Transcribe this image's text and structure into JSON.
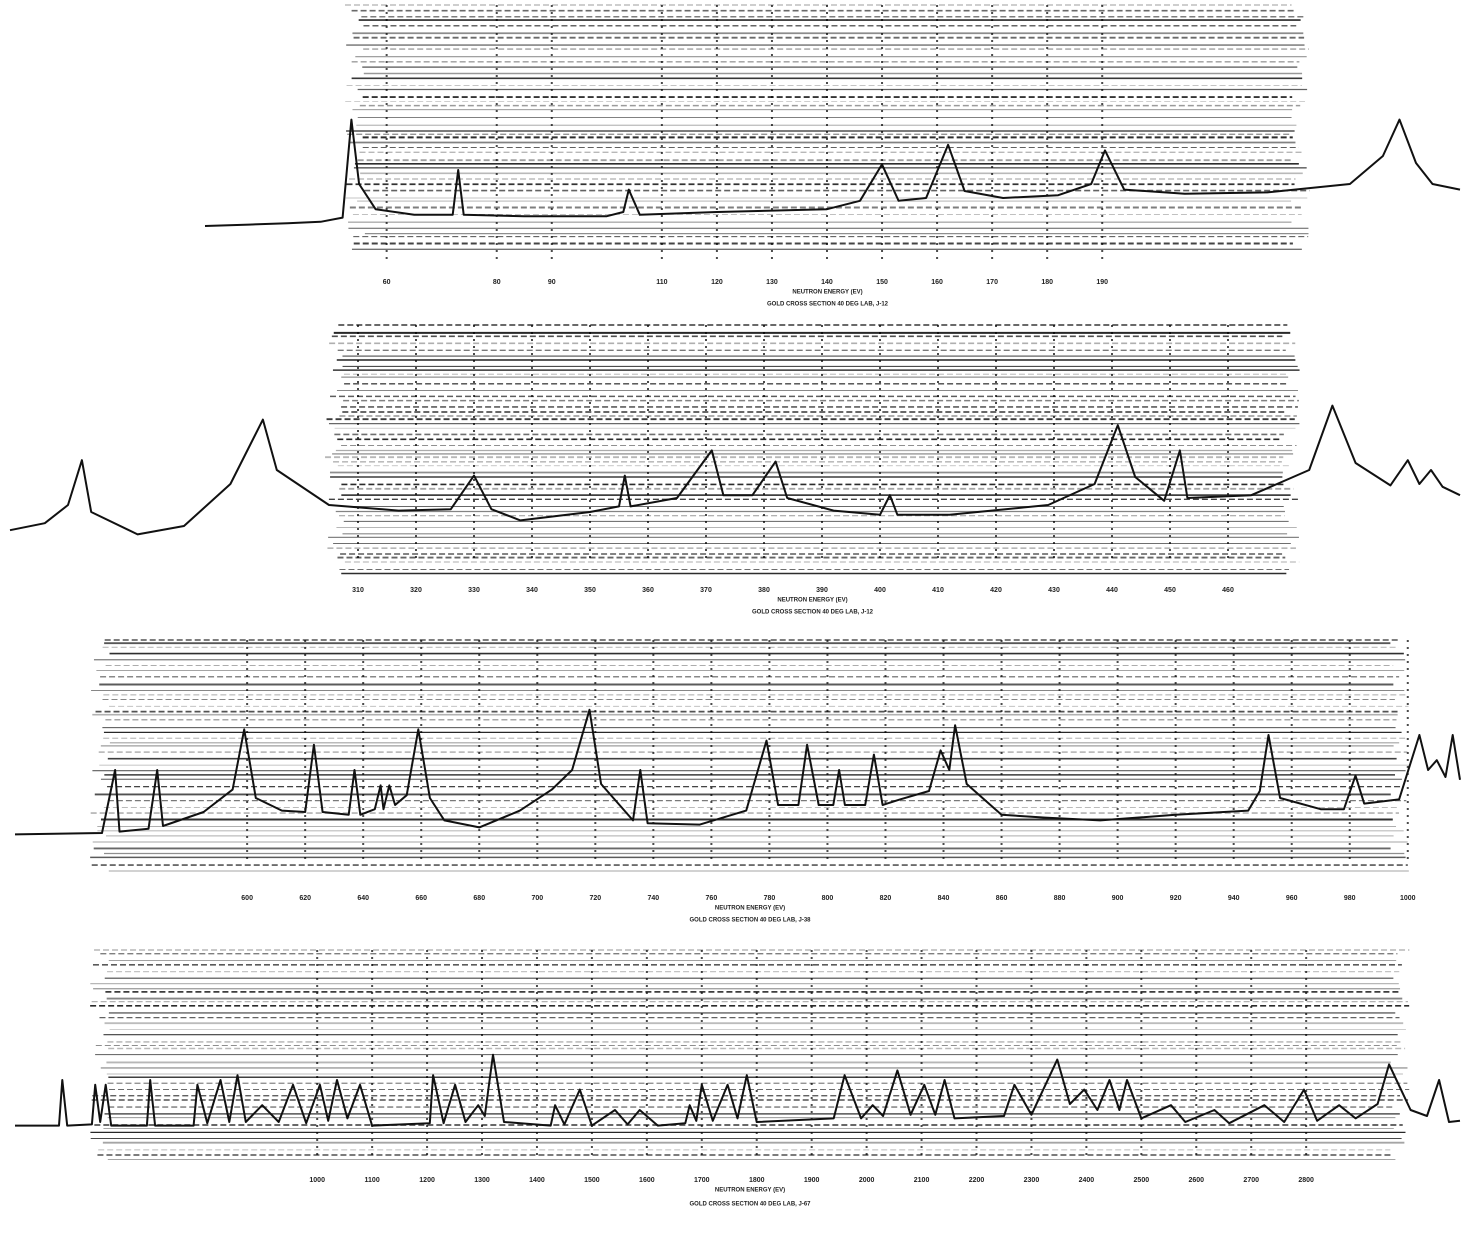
{
  "chart_data": [
    {
      "type": "line",
      "title": "GOLD CROSS SECTION 40 DEG LAB, J-12",
      "x_label": "NEUTRON ENERGY (EV)",
      "color": "#111111",
      "xlim": [
        27,
        255
      ],
      "ylim": [
        0,
        100
      ],
      "xticks": [
        60,
        80,
        90,
        110,
        120,
        130,
        140,
        150,
        160,
        170,
        180,
        190
      ],
      "x": [
        27,
        35,
        42,
        48,
        52,
        53.6,
        55,
        58,
        65,
        72,
        73,
        74,
        85,
        100,
        103,
        104,
        106,
        120,
        140,
        146,
        150,
        153,
        158,
        162,
        165,
        172,
        182,
        188,
        190.5,
        194,
        205,
        220,
        235,
        241,
        244,
        247,
        250,
        255
      ],
      "values": [
        10,
        11,
        12,
        13,
        16,
        86,
        40,
        22,
        18,
        18,
        50,
        18,
        17,
        17,
        20,
        36,
        18,
        20,
        22,
        28,
        54,
        28,
        30,
        68,
        35,
        30,
        32,
        40,
        64,
        36,
        33,
        34,
        40,
        60,
        86,
        55,
        40,
        36
      ]
    },
    {
      "type": "line",
      "title": "GOLD CROSS SECTION 40 DEG LAB, J-12",
      "x_label": "NEUTRON ENERGY (EV)",
      "color": "#111111",
      "xlim": [
        250,
        500
      ],
      "ylim": [
        0,
        100
      ],
      "xticks": [
        310,
        320,
        330,
        340,
        350,
        360,
        370,
        380,
        390,
        400,
        410,
        420,
        430,
        440,
        450,
        460
      ],
      "x": [
        250,
        256,
        260,
        262.4,
        264,
        272,
        280,
        288,
        293.6,
        296,
        305,
        317,
        326,
        330,
        333,
        338,
        350,
        355,
        356,
        357,
        365,
        371,
        373,
        378,
        382,
        384,
        392,
        400,
        401.7,
        403,
        412,
        429,
        437,
        441,
        444,
        449,
        451.7,
        453,
        464,
        474,
        478,
        482,
        488,
        491,
        493,
        495,
        497,
        500
      ],
      "values": [
        7,
        12,
        25,
        57,
        20,
        4,
        10,
        40,
        86,
        50,
        25,
        21,
        22,
        46,
        22,
        14,
        20,
        24,
        46,
        24,
        30,
        64,
        32,
        32,
        56,
        30,
        21,
        18,
        32,
        18,
        18,
        25,
        40,
        82,
        45,
        28,
        64,
        30,
        32,
        50,
        96,
        55,
        39,
        57,
        40,
        50,
        38,
        32
      ]
    },
    {
      "type": "line",
      "title": "GOLD CROSS SECTION 40 DEG LAB, J-38",
      "x_label": "NEUTRON ENERGY (EV)",
      "color": "#111111",
      "xlim": [
        520,
        1018
      ],
      "ylim": [
        0,
        100
      ],
      "xticks": [
        600,
        620,
        640,
        660,
        680,
        700,
        720,
        740,
        760,
        780,
        800,
        820,
        840,
        860,
        880,
        900,
        920,
        940,
        960,
        980,
        1000
      ],
      "x": [
        520,
        550,
        554.5,
        556,
        566,
        569,
        571,
        585,
        595,
        599,
        603,
        612,
        620,
        623,
        626,
        635,
        637,
        639,
        644,
        646,
        647,
        649,
        651,
        655,
        659,
        663,
        668,
        680,
        694,
        705,
        712,
        718,
        722,
        733,
        735.5,
        738,
        756,
        772,
        779,
        783,
        790,
        793,
        797,
        802,
        804,
        806,
        813,
        816,
        819,
        825,
        835,
        839,
        842,
        844,
        848,
        860,
        875,
        894,
        920,
        945,
        949,
        952,
        956,
        970,
        978,
        982,
        985,
        997,
        1004,
        1007,
        1010,
        1013,
        1015.5,
        1018
      ],
      "values": [
        4,
        5,
        50,
        6,
        8,
        50,
        10,
        20,
        36,
        79,
        30,
        21,
        20,
        68,
        20,
        18,
        50,
        18,
        22,
        39,
        22,
        39,
        25,
        32,
        79,
        30,
        14,
        9,
        21,
        36,
        50,
        93,
        40,
        14,
        50,
        12,
        11,
        21,
        71,
        25,
        25,
        68,
        25,
        25,
        50,
        25,
        25,
        61,
        25,
        29,
        35,
        64,
        50,
        82,
        40,
        18,
        16,
        14,
        18,
        21,
        35,
        75,
        30,
        22,
        22,
        46,
        26,
        29,
        75,
        50,
        57,
        45,
        75,
        43
      ]
    },
    {
      "type": "line",
      "title": "GOLD CROSS SECTION 40 DEG LAB, J-67",
      "x_label": "NEUTRON ENERGY (EV)",
      "color": "#111111",
      "xlim": [
        450,
        3080
      ],
      "ylim": [
        0,
        100
      ],
      "xticks": [
        1000,
        1100,
        1200,
        1300,
        1400,
        1500,
        1600,
        1700,
        1800,
        1900,
        2000,
        2100,
        2200,
        2300,
        2400,
        2500,
        2600,
        2700,
        2800
      ],
      "x": [
        450,
        530,
        536,
        545,
        590,
        596,
        605,
        615,
        625,
        690,
        696,
        705,
        775,
        782,
        800,
        824,
        840,
        855,
        870,
        900,
        930,
        956,
        980,
        1005,
        1020,
        1036,
        1055,
        1078,
        1100,
        1205,
        1211,
        1230,
        1251,
        1270,
        1293,
        1305,
        1320,
        1340,
        1425,
        1433,
        1450,
        1478,
        1500,
        1542,
        1565,
        1587,
        1620,
        1670,
        1678,
        1690,
        1700,
        1720,
        1747,
        1765,
        1782,
        1800,
        1940,
        1960,
        1990,
        2011,
        2030,
        2056,
        2080,
        2105,
        2125,
        2142,
        2160,
        2250,
        2269,
        2300,
        2347,
        2370,
        2396,
        2420,
        2442,
        2460,
        2474,
        2500,
        2554,
        2580,
        2633,
        2660,
        2724,
        2760,
        2796,
        2820,
        2860,
        2890,
        2930,
        2951,
        2990,
        3020,
        3042,
        3060,
        3080
      ],
      "values": [
        12,
        12,
        50,
        12,
        13,
        46,
        15,
        46,
        12,
        12,
        50,
        12,
        12,
        46,
        14,
        50,
        15,
        54,
        15,
        29,
        15,
        46,
        14,
        46,
        16,
        50,
        18,
        46,
        12,
        14,
        54,
        14,
        46,
        15,
        29,
        20,
        71,
        15,
        12,
        29,
        13,
        42,
        12,
        25,
        13,
        25,
        12,
        14,
        29,
        16,
        46,
        16,
        46,
        18,
        54,
        15,
        18,
        54,
        18,
        29,
        20,
        58,
        21,
        46,
        21,
        50,
        18,
        20,
        46,
        21,
        67,
        30,
        42,
        25,
        50,
        25,
        50,
        18,
        29,
        15,
        25,
        14,
        29,
        15,
        42,
        16,
        29,
        18,
        30,
        63,
        25,
        20,
        50,
        15,
        16
      ]
    }
  ]
}
